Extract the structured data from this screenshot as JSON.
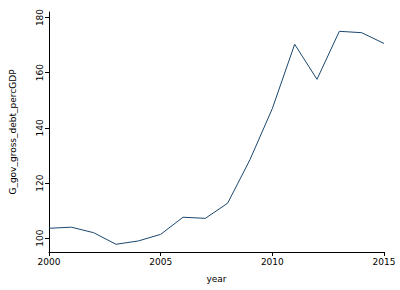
{
  "chart_data": {
    "type": "line",
    "x_label": "year",
    "y_label": "G_gov_gross_debt_percGDP",
    "x": [
      2000,
      2001,
      2002,
      2003,
      2004,
      2005,
      2006,
      2007,
      2008,
      2009,
      2010,
      2011,
      2012,
      2013,
      2014,
      2015
    ],
    "values": [
      103.6,
      104,
      102,
      97.8,
      99,
      101.4,
      107.6,
      107.2,
      112.7,
      128.5,
      147,
      170.3,
      157.6,
      175,
      174.5,
      170.6
    ],
    "color": "#1a476f",
    "xlim": [
      2000,
      2015
    ],
    "xticks": [
      2000,
      2005,
      2010,
      2015
    ],
    "ylim": [
      95,
      182
    ],
    "yticks": [
      100,
      120,
      140,
      160,
      180
    ],
    "grid": false
  }
}
